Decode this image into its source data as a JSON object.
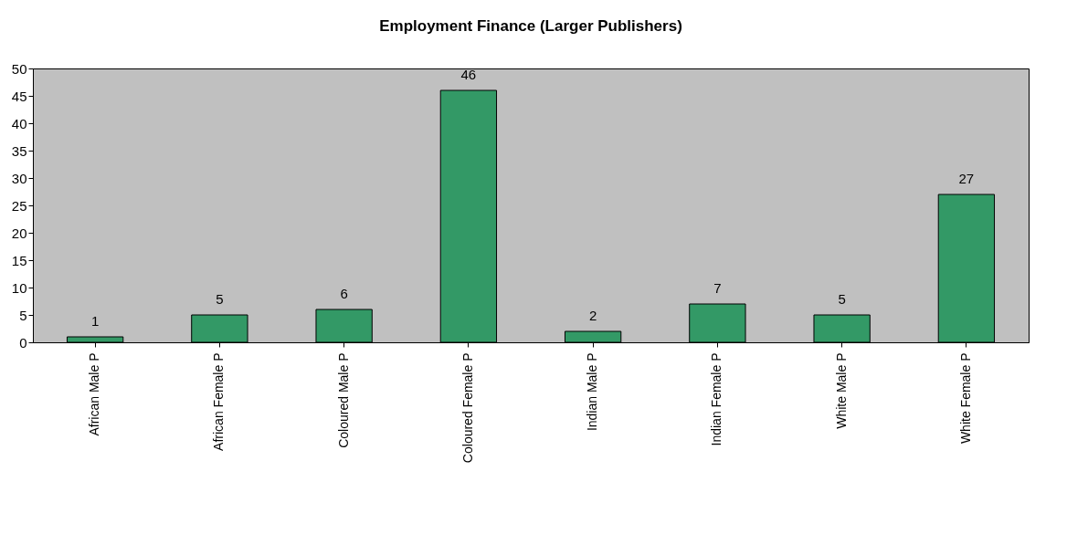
{
  "chart_data": {
    "type": "bar",
    "title": "Employment Finance (Larger Publishers)",
    "categories": [
      "African Male P",
      "African Female P",
      "Coloured Male P",
      "Coloured Female P",
      "Indian Male P",
      "Indian Female P",
      "White Male P",
      "White Female P"
    ],
    "values": [
      1,
      5,
      6,
      46,
      2,
      7,
      5,
      27
    ],
    "color": "#339966",
    "ylim": [
      0,
      50
    ],
    "yticks": [
      0,
      5,
      10,
      15,
      20,
      25,
      30,
      35,
      40,
      45,
      50
    ],
    "grid": false,
    "data_labels": true
  }
}
